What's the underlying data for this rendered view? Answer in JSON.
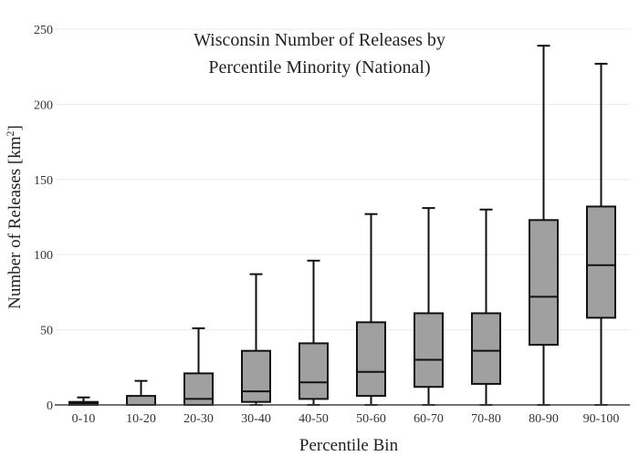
{
  "chart_data": {
    "type": "box",
    "title_lines": [
      "Wisconsin Number of Releases by",
      "Percentile Minority (National)"
    ],
    "xlabel": "Percentile Bin",
    "ylabel_main": "Number of Releases  [km",
    "ylabel_sup": "2",
    "ylabel_close": "]",
    "ylim": [
      0,
      250
    ],
    "yticks": [
      0,
      50,
      100,
      150,
      200,
      250
    ],
    "grid": true,
    "categories": [
      "0-10",
      "10-20",
      "20-30",
      "30-40",
      "40-50",
      "50-60",
      "60-70",
      "70-80",
      "80-90",
      "90-100"
    ],
    "boxes": [
      {
        "min": 0,
        "q1": 0,
        "median": 1,
        "q3": 2,
        "max": 5
      },
      {
        "min": 0,
        "q1": 0,
        "median": 0,
        "q3": 6,
        "max": 16
      },
      {
        "min": 0,
        "q1": 0,
        "median": 4,
        "q3": 21,
        "max": 51
      },
      {
        "min": 0,
        "q1": 2,
        "median": 9,
        "q3": 36,
        "max": 87
      },
      {
        "min": 0,
        "q1": 4,
        "median": 15,
        "q3": 41,
        "max": 96
      },
      {
        "min": 0,
        "q1": 6,
        "median": 22,
        "q3": 55,
        "max": 127
      },
      {
        "min": 0,
        "q1": 12,
        "median": 30,
        "q3": 61,
        "max": 131
      },
      {
        "min": 0,
        "q1": 14,
        "median": 36,
        "q3": 61,
        "max": 130
      },
      {
        "min": 0,
        "q1": 40,
        "median": 72,
        "q3": 123,
        "max": 239
      },
      {
        "min": 0,
        "q1": 58,
        "median": 93,
        "q3": 132,
        "max": 227
      }
    ],
    "colors": {
      "box_fill": "#a0a0a0",
      "stroke": "#111111",
      "grid": "#ebebeb",
      "axis": "#444444"
    }
  }
}
